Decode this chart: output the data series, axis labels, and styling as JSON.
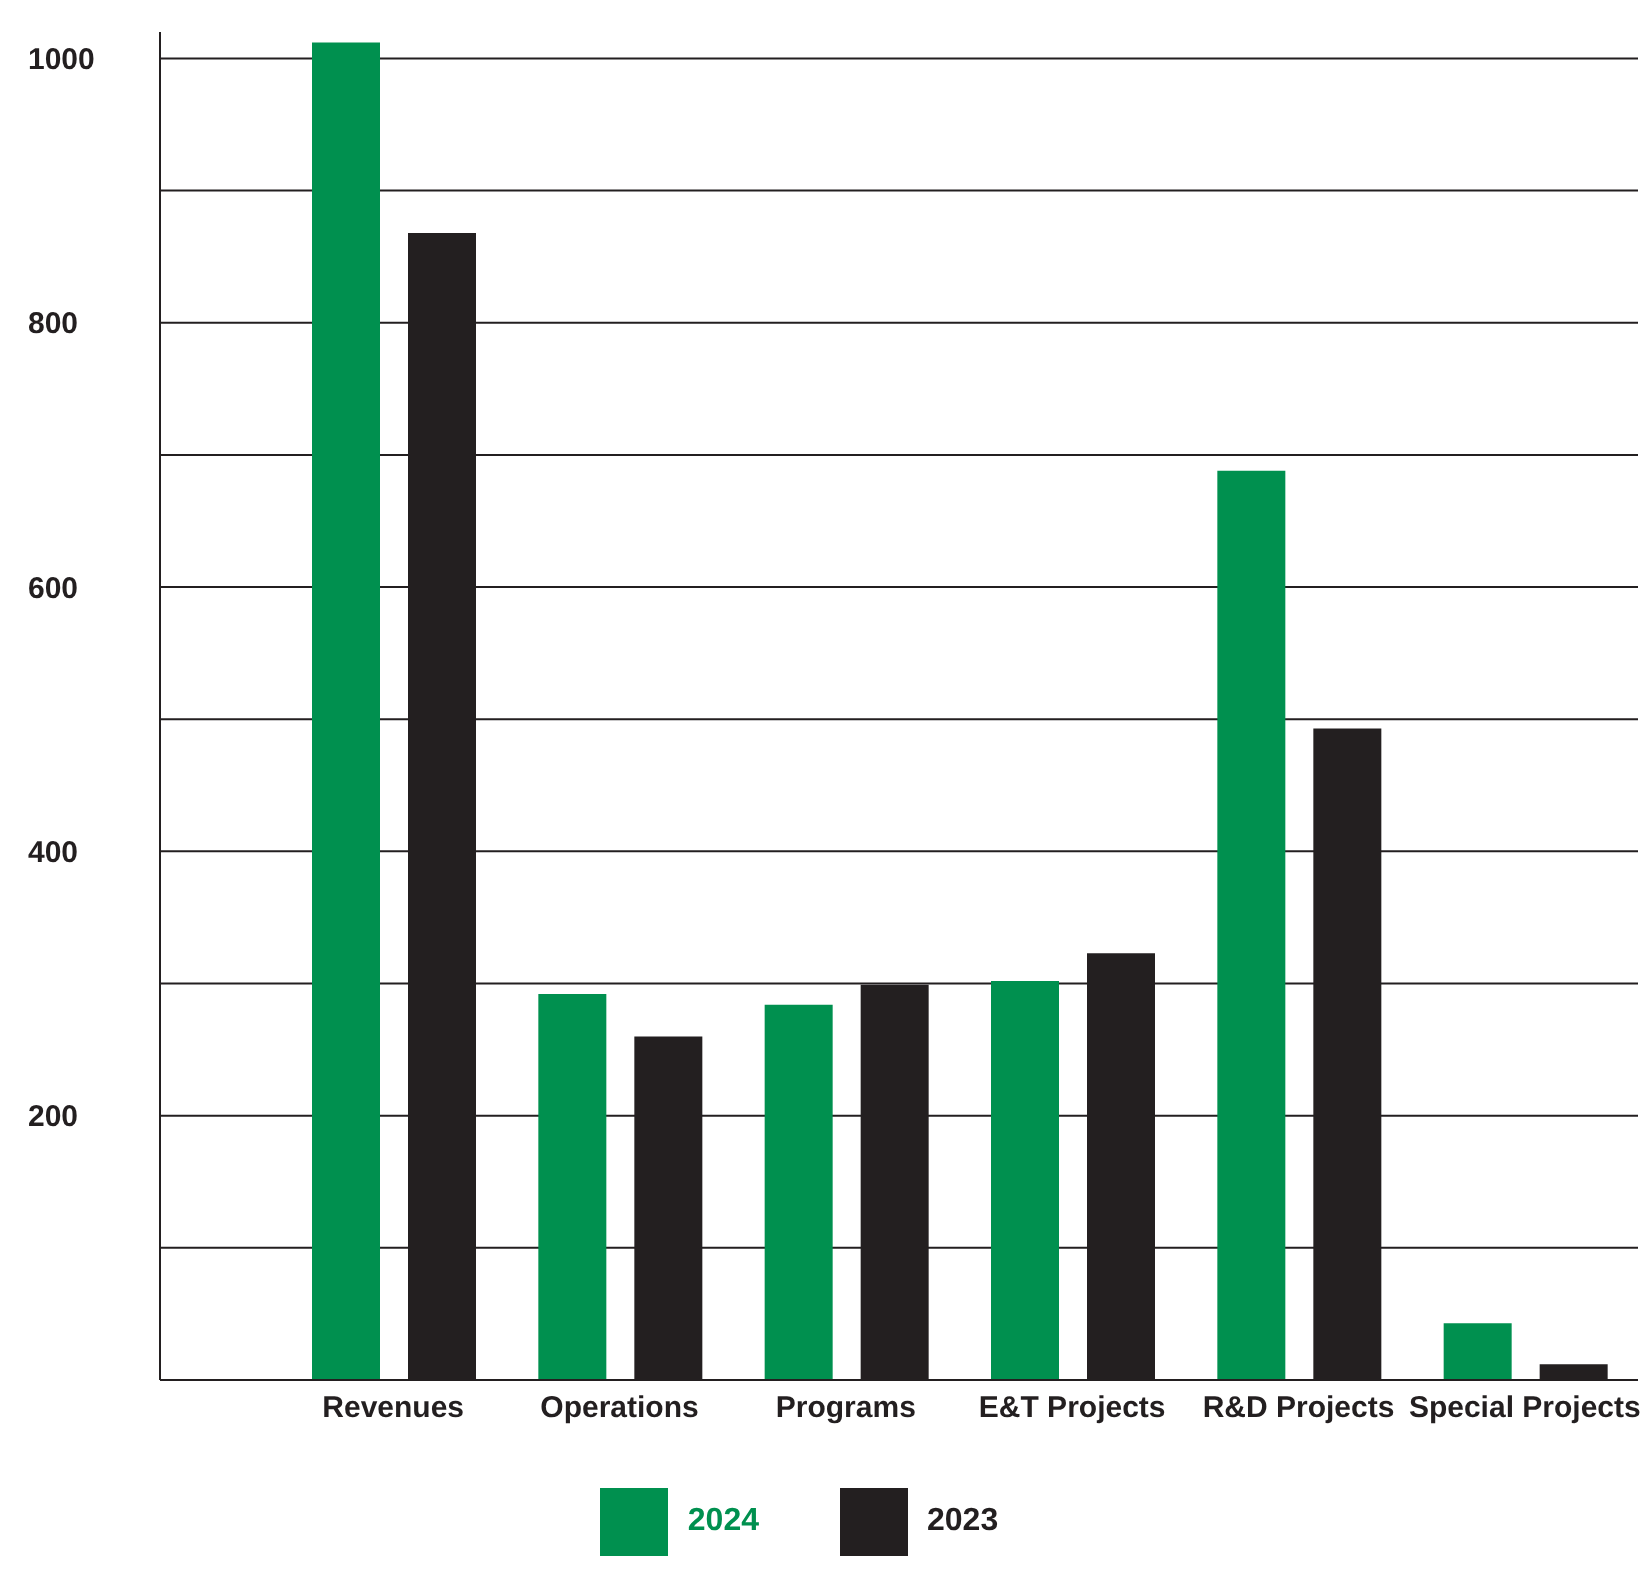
{
  "chart_data": {
    "type": "bar",
    "categories": [
      "Revenues",
      "Operations",
      "Programs",
      "E&T Projects",
      "R&D Projects",
      "Special Projects"
    ],
    "series": [
      {
        "name": "2024",
        "color": "#00904f",
        "values": [
          1012,
          292,
          284,
          302,
          688,
          43
        ]
      },
      {
        "name": "2023",
        "color": "#231f20",
        "values": [
          868,
          260,
          299,
          323,
          493,
          12
        ]
      }
    ],
    "ylim": [
      0,
      1020
    ],
    "yticks": [
      {
        "value": 0,
        "label": null
      },
      {
        "value": 100,
        "label": null
      },
      200,
      {
        "value": 300,
        "label": null
      },
      400,
      {
        "value": 500,
        "label": null
      },
      600,
      {
        "value": 700,
        "label": null
      },
      800,
      {
        "value": 900,
        "label": null
      },
      1000
    ],
    "grid": "y",
    "legend": "bottom"
  }
}
